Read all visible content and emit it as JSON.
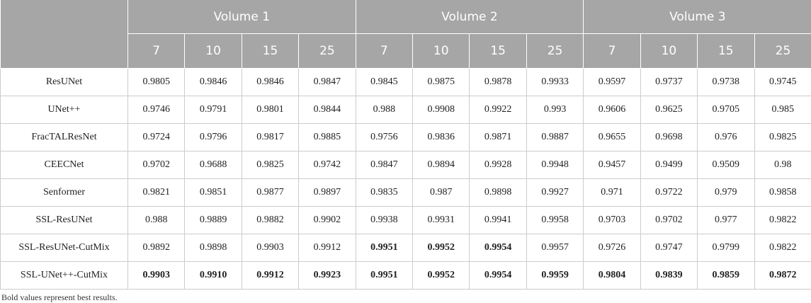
{
  "table": {
    "groups": [
      "Volume 1",
      "Volume 2",
      "Volume 3"
    ],
    "subheaders": [
      "7",
      "10",
      "15",
      "25",
      "7",
      "10",
      "15",
      "25",
      "7",
      "10",
      "15",
      "25"
    ],
    "rows": [
      {
        "label": "ResUNet",
        "values": [
          "0.9805",
          "0.9846",
          "0.9846",
          "0.9847",
          "0.9845",
          "0.9875",
          "0.9878",
          "0.9933",
          "0.9597",
          "0.9737",
          "0.9738",
          "0.9745"
        ],
        "bold": []
      },
      {
        "label": "UNet++",
        "values": [
          "0.9746",
          "0.9791",
          "0.9801",
          "0.9844",
          "0.988",
          "0.9908",
          "0.9922",
          "0.993",
          "0.9606",
          "0.9625",
          "0.9705",
          "0.985"
        ],
        "bold": []
      },
      {
        "label": "FracTALResNet",
        "values": [
          "0.9724",
          "0.9796",
          "0.9817",
          "0.9885",
          "0.9756",
          "0.9836",
          "0.9871",
          "0.9887",
          "0.9655",
          "0.9698",
          "0.976",
          "0.9825"
        ],
        "bold": []
      },
      {
        "label": "CEECNet",
        "values": [
          "0.9702",
          "0.9688",
          "0.9825",
          "0.9742",
          "0.9847",
          "0.9894",
          "0.9928",
          "0.9948",
          "0.9457",
          "0.9499",
          "0.9509",
          "0.98"
        ],
        "bold": []
      },
      {
        "label": "Senformer",
        "values": [
          "0.9821",
          "0.9851",
          "0.9877",
          "0.9897",
          "0.9835",
          "0.987",
          "0.9898",
          "0.9927",
          "0.971",
          "0.9722",
          "0.979",
          "0.9858"
        ],
        "bold": []
      },
      {
        "label": "SSL-ResUNet",
        "values": [
          "0.988",
          "0.9889",
          "0.9882",
          "0.9902",
          "0.9938",
          "0.9931",
          "0.9941",
          "0.9958",
          "0.9703",
          "0.9702",
          "0.977",
          "0.9822"
        ],
        "bold": []
      },
      {
        "label": "SSL-ResUNet-CutMix",
        "values": [
          "0.9892",
          "0.9898",
          "0.9903",
          "0.9912",
          "0.9951",
          "0.9952",
          "0.9954",
          "0.9957",
          "0.9726",
          "0.9747",
          "0.9799",
          "0.9822"
        ],
        "bold": [
          4,
          5,
          6
        ]
      },
      {
        "label": "SSL-UNet++-CutMix",
        "values": [
          "0.9903",
          "0.9910",
          "0.9912",
          "0.9923",
          "0.9951",
          "0.9952",
          "0.9954",
          "0.9959",
          "0.9804",
          "0.9839",
          "0.9859",
          "0.9872"
        ],
        "bold": [
          0,
          1,
          2,
          3,
          4,
          5,
          6,
          7,
          8,
          9,
          10,
          11
        ]
      }
    ],
    "footnote": "Bold values represent best results."
  }
}
